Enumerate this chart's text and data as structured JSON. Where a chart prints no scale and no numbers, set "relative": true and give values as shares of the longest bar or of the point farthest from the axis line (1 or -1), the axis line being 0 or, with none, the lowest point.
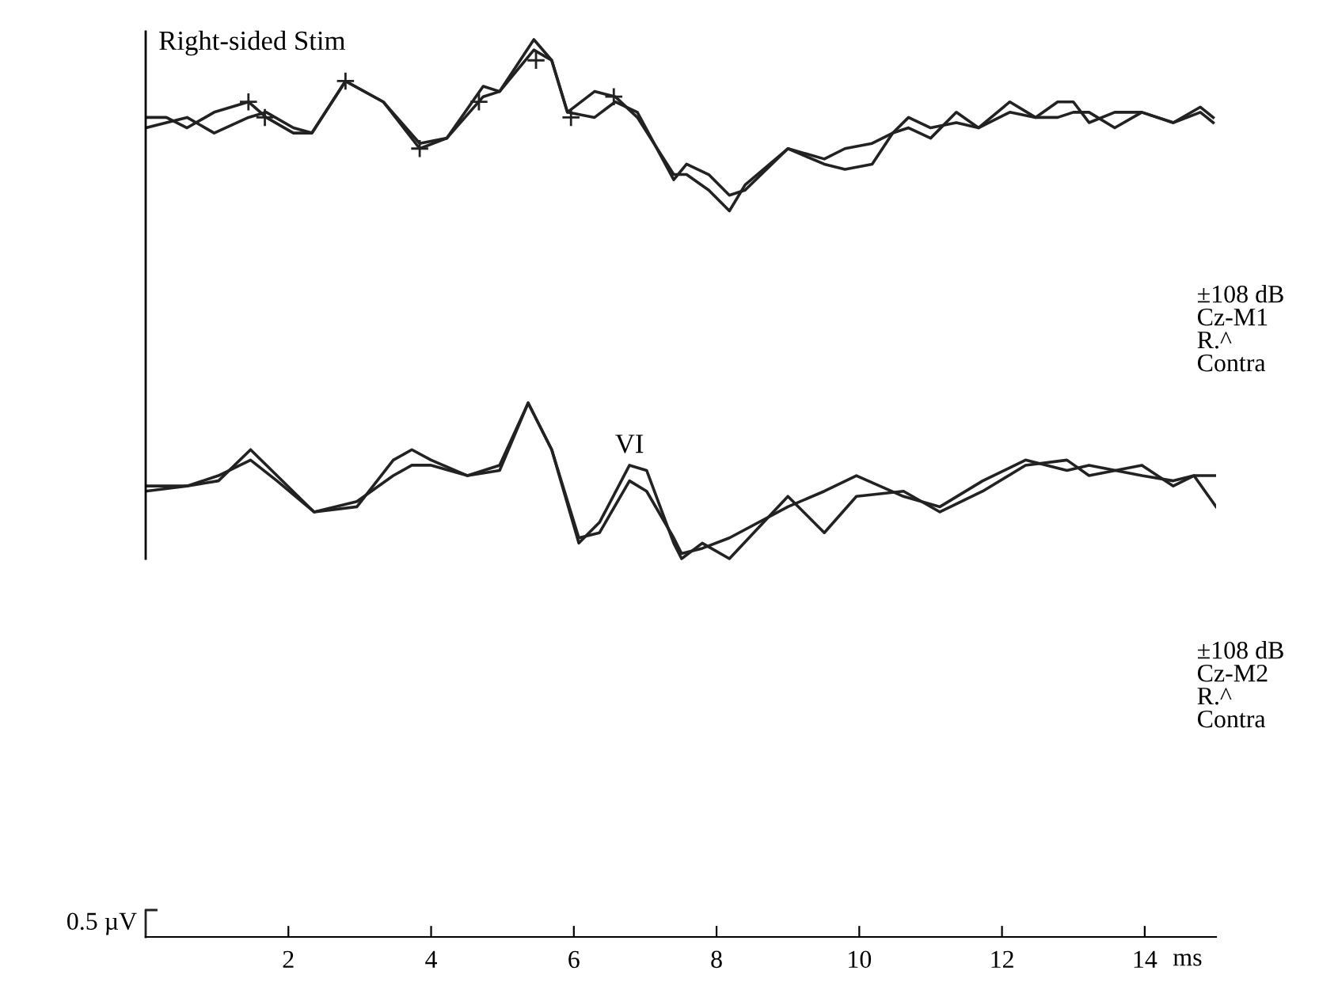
{
  "chart_data": {
    "type": "line",
    "relative": true,
    "title": "Right-sided Stim",
    "xlabel": "ms",
    "xlim": [
      0,
      15
    ],
    "xticks": [
      2,
      4,
      6,
      8,
      10,
      12,
      14
    ],
    "grid": false,
    "line_style": "solid",
    "annotations": [
      "0.5 µV",
      "±108 dB\nCz-M1\nR.^\nContra",
      "±108 dB\nCz-M2\nR.^\nContra",
      {
        "text": "VI",
        "x": 6.78,
        "y": 0.18
      }
    ],
    "series": [
      {
        "color": "#222222",
        "x": [
          0,
          0.29,
          0.58,
          0.96,
          1.44,
          1.69,
          2.07,
          2.33,
          2.8,
          3.33,
          3.84,
          4.22,
          4.73,
          4.96,
          5.44,
          5.69,
          5.91,
          6.29,
          6.58,
          6.89,
          7.4,
          7.58,
          7.89,
          8.18,
          8.4,
          9.0,
          9.51,
          9.8,
          10.18,
          10.47,
          10.69,
          11.0,
          11.36,
          11.67,
          12.11,
          12.47,
          12.78,
          13.0,
          13.22,
          13.58,
          13.96,
          14.4,
          14.78,
          14.96
        ],
        "values": [
          0.85,
          0.85,
          0.83,
          0.86,
          0.88,
          0.85,
          0.82,
          0.82,
          0.92,
          0.88,
          0.79,
          0.81,
          0.91,
          0.9,
          1.0,
          0.96,
          0.86,
          0.9,
          0.89,
          0.85,
          0.74,
          0.74,
          0.71,
          0.67,
          0.72,
          0.79,
          0.76,
          0.75,
          0.76,
          0.82,
          0.83,
          0.81,
          0.86,
          0.83,
          0.86,
          0.85,
          0.88,
          0.88,
          0.84,
          0.86,
          0.86,
          0.84,
          0.86,
          0.84
        ]
      },
      {
        "color": "#222222",
        "x": [
          0,
          0.29,
          0.58,
          0.96,
          1.44,
          1.69,
          2.07,
          2.33,
          2.8,
          3.33,
          3.84,
          4.22,
          4.73,
          4.96,
          5.44,
          5.69,
          5.91,
          6.29,
          6.58,
          6.89,
          7.4,
          7.58,
          7.89,
          8.18,
          8.4,
          9.0,
          9.51,
          9.8,
          10.18,
          10.47,
          10.69,
          11.0,
          11.36,
          11.67,
          12.11,
          12.47,
          12.78,
          13.0,
          13.22,
          13.58,
          13.96,
          14.4,
          14.78,
          14.96
        ],
        "values": [
          0.83,
          0.84,
          0.85,
          0.82,
          0.85,
          0.86,
          0.83,
          0.82,
          0.92,
          0.88,
          0.8,
          0.81,
          0.89,
          0.9,
          0.98,
          0.96,
          0.86,
          0.85,
          0.88,
          0.86,
          0.73,
          0.76,
          0.74,
          0.7,
          0.71,
          0.79,
          0.77,
          0.79,
          0.8,
          0.82,
          0.85,
          0.83,
          0.84,
          0.83,
          0.88,
          0.85,
          0.85,
          0.86,
          0.86,
          0.83,
          0.86,
          0.84,
          0.87,
          0.85
        ]
      },
      {
        "type": "scatter",
        "marker": "cross",
        "color": "#222222",
        "x": [
          1.44,
          1.67,
          2.8,
          3.84,
          4.67,
          5.47,
          5.96,
          6.56
        ],
        "values": [
          0.88,
          0.85,
          0.92,
          0.79,
          0.88,
          0.96,
          0.85,
          0.89
        ]
      },
      {
        "color": "#222222",
        "x": [
          0,
          0.58,
          1.02,
          1.47,
          1.84,
          2.36,
          2.96,
          3.47,
          3.73,
          4.0,
          4.51,
          4.96,
          5.36,
          5.69,
          6.07,
          6.36,
          6.78,
          7.02,
          7.4,
          7.51,
          7.8,
          8.18,
          9.0,
          9.51,
          9.96,
          10.62,
          11.13,
          11.73,
          12.33,
          12.91,
          13.22,
          13.96,
          14.4,
          14.69,
          15.0
        ],
        "values": [
          0.13,
          0.14,
          0.15,
          0.21,
          0.16,
          0.09,
          0.1,
          0.19,
          0.21,
          0.19,
          0.16,
          0.18,
          0.3,
          0.21,
          0.03,
          0.07,
          0.18,
          0.17,
          0.03,
          0.0,
          0.03,
          0.0,
          0.12,
          0.05,
          0.12,
          0.13,
          0.09,
          0.13,
          0.18,
          0.19,
          0.16,
          0.18,
          0.14,
          0.16,
          0.1
        ]
      },
      {
        "color": "#222222",
        "x": [
          0,
          0.58,
          1.02,
          1.47,
          1.84,
          2.36,
          2.96,
          3.47,
          3.73,
          4.0,
          4.51,
          4.96,
          5.36,
          5.69,
          6.07,
          6.36,
          6.78,
          7.02,
          7.4,
          7.51,
          7.8,
          8.18,
          9.0,
          9.51,
          9.96,
          10.62,
          11.13,
          11.73,
          12.33,
          12.91,
          13.22,
          13.96,
          14.4,
          14.69,
          15.0
        ],
        "values": [
          0.14,
          0.14,
          0.16,
          0.19,
          0.15,
          0.09,
          0.11,
          0.16,
          0.18,
          0.18,
          0.16,
          0.17,
          0.3,
          0.21,
          0.04,
          0.05,
          0.15,
          0.13,
          0.04,
          0.01,
          0.02,
          0.04,
          0.1,
          0.13,
          0.16,
          0.12,
          0.1,
          0.15,
          0.19,
          0.17,
          0.18,
          0.16,
          0.15,
          0.16,
          0.16
        ]
      }
    ]
  }
}
